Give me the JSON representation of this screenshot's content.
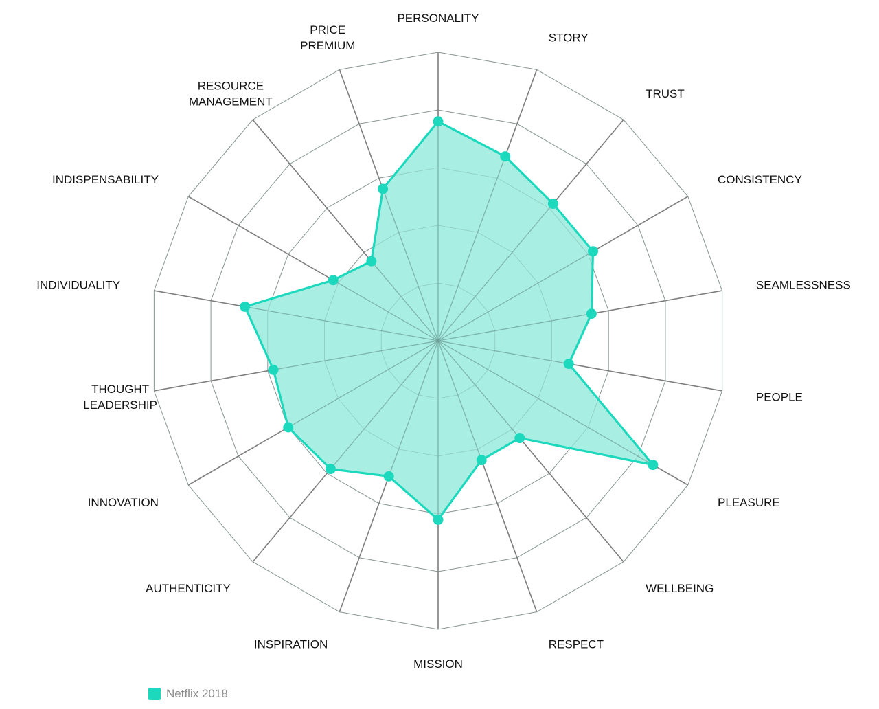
{
  "chart_data": {
    "type": "radar",
    "axes": [
      "PERSONALITY",
      "STORY",
      "TRUST",
      "CONSISTENCY",
      "SEAMLESSNESS",
      "PEOPLE",
      "PLEASURE",
      "WELLBEING",
      "RESPECT",
      "MISSION",
      "INSPIRATION",
      "AUTHENTICITY",
      "INNOVATION",
      "THOUGHT LEADERSHIP",
      "INDIVIDUALITY",
      "INDISPENSABILITY",
      "RESOURCE MANAGEMENT",
      "PRICE PREMIUM"
    ],
    "axis_label_lines": [
      [
        "PERSONALITY"
      ],
      [
        "STORY"
      ],
      [
        "TRUST"
      ],
      [
        "CONSISTENCY"
      ],
      [
        "SEAMLESSNESS"
      ],
      [
        "PEOPLE"
      ],
      [
        "PLEASURE"
      ],
      [
        "WELLBEING"
      ],
      [
        "RESPECT"
      ],
      [
        "MISSION"
      ],
      [
        "INSPIRATION"
      ],
      [
        "AUTHENTICITY"
      ],
      [
        "INNOVATION"
      ],
      [
        "THOUGHT",
        "LEADERSHIP"
      ],
      [
        "INDIVIDUALITY"
      ],
      [
        "INDISPENSABILITY"
      ],
      [
        "RESOURCE",
        "MANAGEMENT"
      ],
      [
        "PRICE",
        "PREMIUM"
      ]
    ],
    "rings": 5,
    "max": 5,
    "series": [
      {
        "name": "Netflix 2018",
        "color": "#1cd9bd",
        "fill": "#a0ece0",
        "values": [
          3.8,
          3.4,
          3.1,
          3.1,
          2.7,
          2.3,
          4.3,
          2.2,
          2.2,
          3.1,
          2.5,
          2.9,
          3.0,
          2.9,
          3.4,
          2.1,
          1.8,
          2.8
        ]
      }
    ],
    "grid": true,
    "legend_position": "bottom-left"
  }
}
